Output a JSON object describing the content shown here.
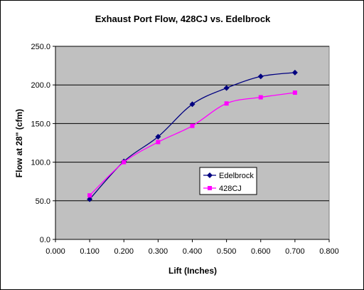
{
  "chart_data": {
    "type": "line",
    "title": "Exhaust Port Flow, 428CJ vs. Edelbrock",
    "xlabel": "Lift (Inches)",
    "ylabel": "Flow at 28\" (cfm)",
    "xlim": [
      0,
      0.8
    ],
    "ylim": [
      0,
      250
    ],
    "xticks": [
      "0.000",
      "0.100",
      "0.200",
      "0.300",
      "0.400",
      "0.500",
      "0.600",
      "0.700",
      "0.800"
    ],
    "yticks": [
      "0.0",
      "50.0",
      "100.0",
      "150.0",
      "200.0",
      "250.0"
    ],
    "grid": "horizontal",
    "legend_position": "center-right",
    "series": [
      {
        "name": "Edelbrock",
        "color": "#000080",
        "marker": "diamond",
        "x": [
          0.1,
          0.2,
          0.3,
          0.4,
          0.5,
          0.6,
          0.7
        ],
        "values": [
          52,
          101,
          133,
          175,
          196,
          211,
          216
        ]
      },
      {
        "name": "428CJ",
        "color": "#FF00FF",
        "marker": "square",
        "x": [
          0.1,
          0.2,
          0.3,
          0.4,
          0.5,
          0.6,
          0.7
        ],
        "values": [
          57,
          100,
          126,
          147,
          176,
          184,
          190
        ]
      }
    ],
    "colors": {
      "plot_background": "#C0C0C0",
      "gridline": "#000000"
    }
  }
}
